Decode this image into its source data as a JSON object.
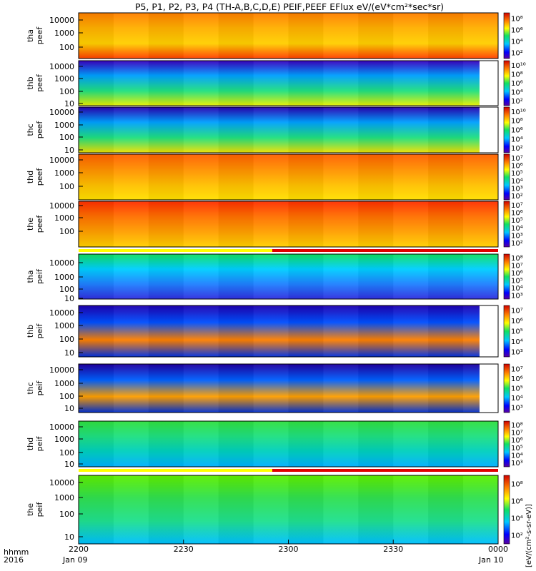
{
  "title": "P5, P1, P2, P3, P4 (TH-A,B,C,D,E) PEIF,PEEF EFlux eV/(eV*cm²*sec*sr)",
  "colorbar_unit": "[eV/(cm²-s-sr-eV)]",
  "footer": {
    "hhmm_label": "hhmm",
    "year_label": "2016",
    "start_date": "Jan 09",
    "end_date": "Jan 10"
  },
  "chart_data": {
    "type": "heatmap",
    "x_range": [
      "2016-01-09 22:00",
      "2016-01-10 00:00"
    ],
    "x_ticks": [
      "2200",
      "2230",
      "2300",
      "2330",
      "0000"
    ],
    "y_scale": "log",
    "y_label_unit": "eV",
    "panels": [
      {
        "label1": "tha",
        "label2": "peef",
        "y_ticks": [
          "10000",
          "1000",
          "100"
        ],
        "cbar_ticks": [
          "10⁸",
          "10⁶",
          "10⁴",
          "10²"
        ],
        "cbar_range": [
          1,
          9
        ],
        "state_bar": "none"
      },
      {
        "label1": "thb",
        "label2": "peef",
        "y_ticks": [
          "10000",
          "1000",
          "100",
          "10"
        ],
        "cbar_ticks": [
          "10¹⁰",
          "10⁸",
          "10⁶",
          "10⁴",
          "10²"
        ],
        "cbar_range": [
          1,
          11
        ],
        "state_bar": "none"
      },
      {
        "label1": "thc",
        "label2": "peef",
        "y_ticks": [
          "10000",
          "1000",
          "100",
          "10"
        ],
        "cbar_ticks": [
          "10¹⁰",
          "10⁸",
          "10⁶",
          "10⁴",
          "10²"
        ],
        "cbar_range": [
          1,
          11
        ],
        "state_bar": "none"
      },
      {
        "label1": "thd",
        "label2": "peef",
        "y_ticks": [
          "10000",
          "1000",
          "100"
        ],
        "cbar_ticks": [
          "10⁷",
          "10⁶",
          "10⁵",
          "10⁴",
          "10³",
          "10²"
        ],
        "cbar_range": [
          1.5,
          7.5
        ],
        "state_bar": "none"
      },
      {
        "label1": "the",
        "label2": "peef",
        "y_ticks": [
          "10000",
          "1000",
          "100"
        ],
        "cbar_ticks": [
          "10⁷",
          "10⁶",
          "10⁵",
          "10⁴",
          "10³",
          "10²"
        ],
        "cbar_range": [
          1.5,
          7.5
        ],
        "state_bar": "after"
      },
      {
        "label1": "tha",
        "label2": "peif",
        "y_ticks": [
          "10000",
          "1000",
          "100",
          "10"
        ],
        "cbar_ticks": [
          "10⁸",
          "10⁷",
          "10⁶",
          "10⁵",
          "10⁴",
          "10³"
        ],
        "cbar_range": [
          2.5,
          8.5
        ],
        "state_bar": "none"
      },
      {
        "label1": "thb",
        "label2": "peif",
        "y_ticks": [
          "10000",
          "1000",
          "100",
          "10"
        ],
        "cbar_ticks": [
          "10⁷",
          "10⁶",
          "10⁵",
          "10⁴",
          "10³"
        ],
        "cbar_range": [
          2.5,
          7.5
        ],
        "state_bar": "none"
      },
      {
        "label1": "thc",
        "label2": "peif",
        "y_ticks": [
          "10000",
          "1000",
          "100",
          "10"
        ],
        "cbar_ticks": [
          "10⁷",
          "10⁶",
          "10⁵",
          "10⁴",
          "10³"
        ],
        "cbar_range": [
          2.5,
          7.5
        ],
        "state_bar": "none"
      },
      {
        "label1": "thd",
        "label2": "peif",
        "y_ticks": [
          "10000",
          "1000",
          "100",
          "10"
        ],
        "cbar_ticks": [
          "10⁸",
          "10⁷",
          "10⁶",
          "10⁵",
          "10⁴",
          "10³"
        ],
        "cbar_range": [
          2.5,
          8.5
        ],
        "state_bar": "after"
      },
      {
        "label1": "the",
        "label2": "peif",
        "y_ticks": [
          "10000",
          "1000",
          "100",
          "10"
        ],
        "cbar_ticks": [
          "10⁸",
          "10⁶",
          "10⁴",
          "10²"
        ],
        "cbar_range": [
          1,
          9
        ],
        "state_bar": "none"
      }
    ]
  }
}
